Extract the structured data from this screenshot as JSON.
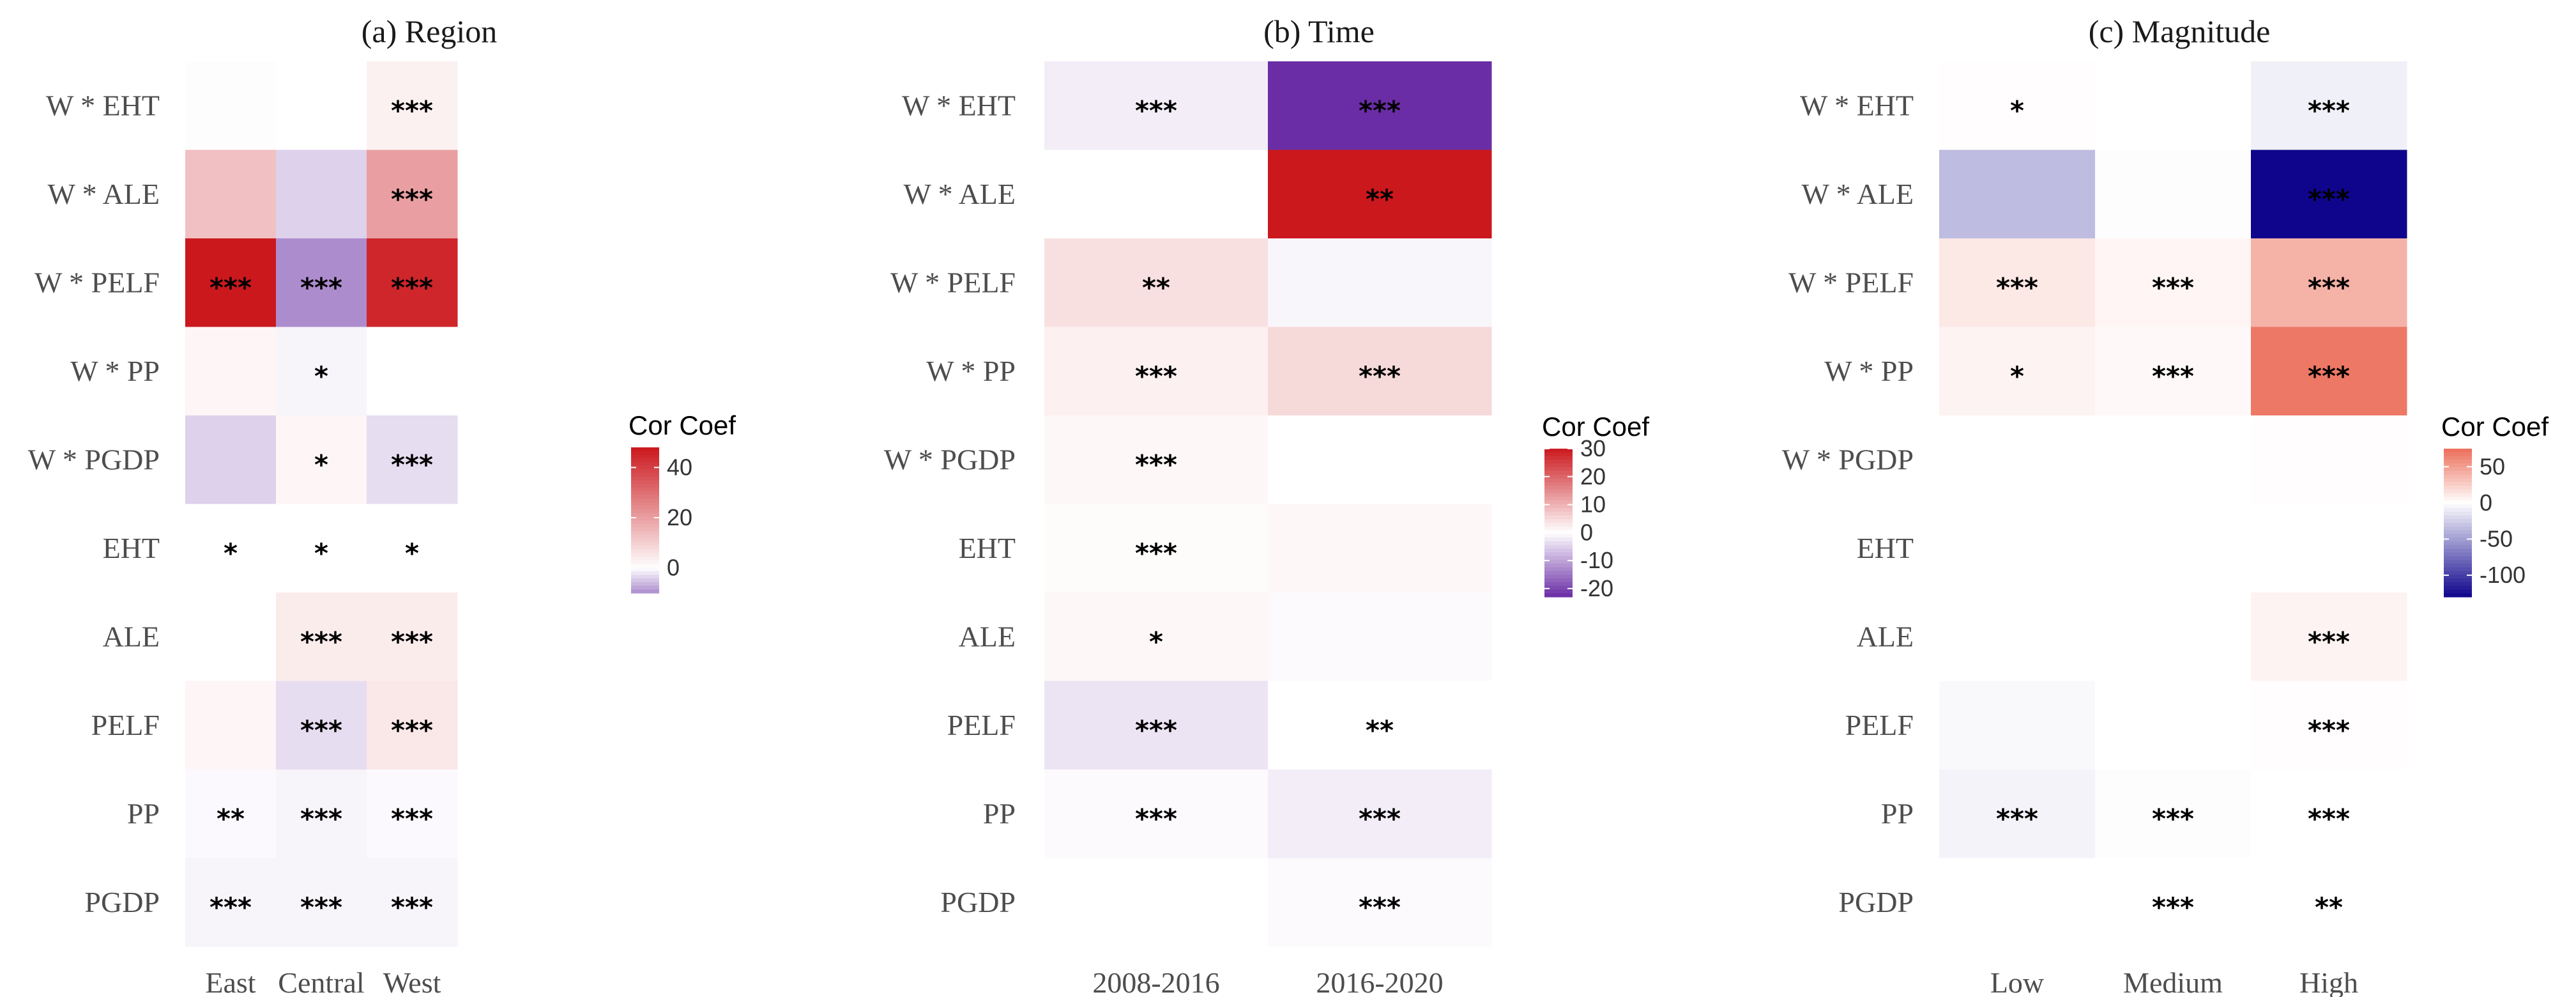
{
  "chart_data": [
    {
      "type": "heatmap",
      "title": "(a)  Region",
      "x": [
        "East",
        "Central",
        "West"
      ],
      "y": [
        "W * EHT",
        "W * ALE",
        "W * PELF",
        "W * PP",
        "W * PGDP",
        "EHT",
        "ALE",
        "PELF",
        "PP",
        "PGDP"
      ],
      "values": [
        [
          0.5,
          0,
          3
        ],
        [
          13,
          -4,
          20
        ],
        [
          48,
          -16,
          45
        ],
        [
          2,
          -1,
          0
        ],
        [
          -4,
          2,
          -3
        ],
        [
          0,
          0,
          0
        ],
        [
          0,
          4,
          4
        ],
        [
          2,
          -3,
          5
        ],
        [
          -0.5,
          -1,
          -0.5
        ],
        [
          -1,
          -1,
          -1
        ]
      ],
      "significance": [
        [
          "",
          "",
          "***"
        ],
        [
          "",
          "",
          "***"
        ],
        [
          "***",
          "***",
          "***"
        ],
        [
          "",
          "*",
          ""
        ],
        [
          "",
          "*",
          "***"
        ],
        [
          "*",
          "*",
          "*"
        ],
        [
          "",
          "***",
          "***"
        ],
        [
          "",
          "***",
          "***"
        ],
        [
          "**",
          "***",
          "***"
        ],
        [
          "***",
          "***",
          "***"
        ]
      ],
      "legend": {
        "title": "Cor Coef",
        "ticks": [
          40,
          20,
          0
        ],
        "range": [
          -10,
          48
        ]
      }
    },
    {
      "type": "heatmap",
      "title": "(b)  Time",
      "x": [
        "2008-2016",
        "2016-2020"
      ],
      "y": [
        "W * EHT",
        "W * ALE",
        "W * PELF",
        "W * PP",
        "W * PGDP",
        "EHT",
        "ALE",
        "PELF",
        "PP",
        "PGDP"
      ],
      "values": [
        [
          -2,
          -23
        ],
        [
          0,
          30
        ],
        [
          4,
          -1
        ],
        [
          2,
          5
        ],
        [
          1,
          0
        ],
        [
          0.5,
          1
        ],
        [
          1,
          -0.5
        ],
        [
          -3,
          0
        ],
        [
          -0.5,
          -2
        ],
        [
          0,
          -0.5
        ]
      ],
      "significance": [
        [
          "***",
          "***"
        ],
        [
          "",
          "**"
        ],
        [
          "**",
          ""
        ],
        [
          "***",
          "***"
        ],
        [
          "***",
          ""
        ],
        [
          "***",
          ""
        ],
        [
          "*",
          ""
        ],
        [
          "***",
          "**"
        ],
        [
          "***",
          "***"
        ],
        [
          "",
          "***"
        ]
      ],
      "legend": {
        "title": "Cor Coef",
        "ticks": [
          30,
          20,
          10,
          0,
          -10,
          -20
        ],
        "range": [
          -23,
          30
        ]
      }
    },
    {
      "type": "heatmap",
      "title": "(c)  Magnitude",
      "x": [
        "Low",
        "Medium",
        "High"
      ],
      "y": [
        "W * EHT",
        "W * ALE",
        "W * PELF",
        "W * PP",
        "W * PGDP",
        "EHT",
        "ALE",
        "PELF",
        "PP",
        "PGDP"
      ],
      "values": [
        [
          1,
          0,
          -8
        ],
        [
          -35,
          -1,
          -130
        ],
        [
          12,
          5,
          40
        ],
        [
          6,
          3,
          70
        ],
        [
          0,
          0,
          1
        ],
        [
          0,
          0,
          0
        ],
        [
          0,
          0,
          6
        ],
        [
          -3,
          0,
          1
        ],
        [
          -6,
          -1,
          0
        ],
        [
          0,
          0,
          0
        ]
      ],
      "significance": [
        [
          "*",
          "",
          "***"
        ],
        [
          "",
          "",
          "***"
        ],
        [
          "***",
          "***",
          "***"
        ],
        [
          "*",
          "***",
          "***"
        ],
        [
          "",
          "",
          ""
        ],
        [
          "",
          "",
          ""
        ],
        [
          "",
          "",
          "***"
        ],
        [
          "",
          "",
          "***"
        ],
        [
          "***",
          "***",
          "***"
        ],
        [
          "",
          "***",
          "**"
        ]
      ],
      "legend": {
        "title": "Cor Coef",
        "ticks": [
          50,
          0,
          -50,
          -100
        ],
        "range": [
          -130,
          75
        ]
      }
    }
  ]
}
